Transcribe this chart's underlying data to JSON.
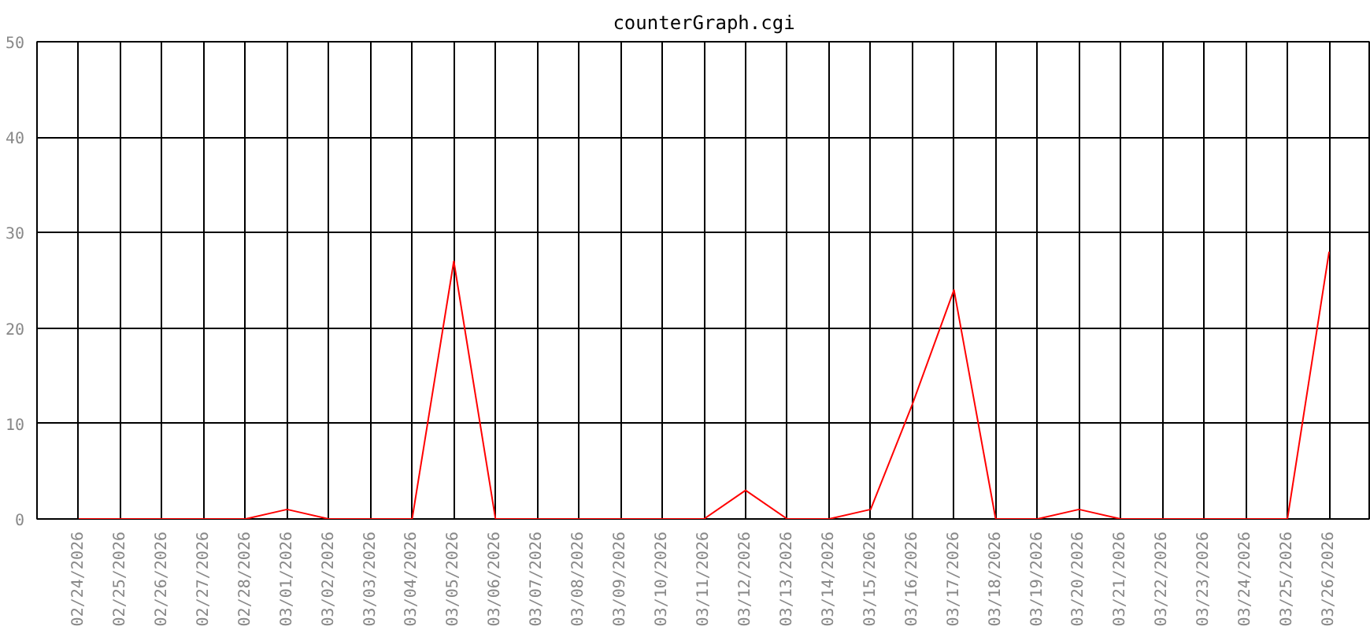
{
  "chart_data": {
    "type": "line",
    "title": "counterGraph.cgi",
    "categories": [
      "02/24/2026",
      "02/25/2026",
      "02/26/2026",
      "02/27/2026",
      "02/28/2026",
      "03/01/2026",
      "03/02/2026",
      "03/03/2026",
      "03/04/2026",
      "03/05/2026",
      "03/06/2026",
      "03/07/2026",
      "03/08/2026",
      "03/09/2026",
      "03/10/2026",
      "03/11/2026",
      "03/12/2026",
      "03/13/2026",
      "03/14/2026",
      "03/15/2026",
      "03/16/2026",
      "03/17/2026",
      "03/18/2026",
      "03/19/2026",
      "03/20/2026",
      "03/21/2026",
      "03/22/2026",
      "03/23/2026",
      "03/24/2026",
      "03/25/2026",
      "03/26/2026"
    ],
    "series": [
      {
        "color": "#ff0000",
        "values": [
          0,
          0,
          0,
          0,
          0,
          1,
          0,
          0,
          0,
          27,
          0,
          0,
          0,
          0,
          0,
          0,
          3,
          0,
          0,
          1,
          12,
          24,
          0,
          0,
          1,
          0,
          0,
          0,
          0,
          0,
          28
        ]
      }
    ],
    "ylim": [
      0,
      50
    ],
    "yticks": [
      0,
      10,
      20,
      30,
      40,
      50
    ],
    "grid": true,
    "marker": "none",
    "line_style": "solid"
  }
}
